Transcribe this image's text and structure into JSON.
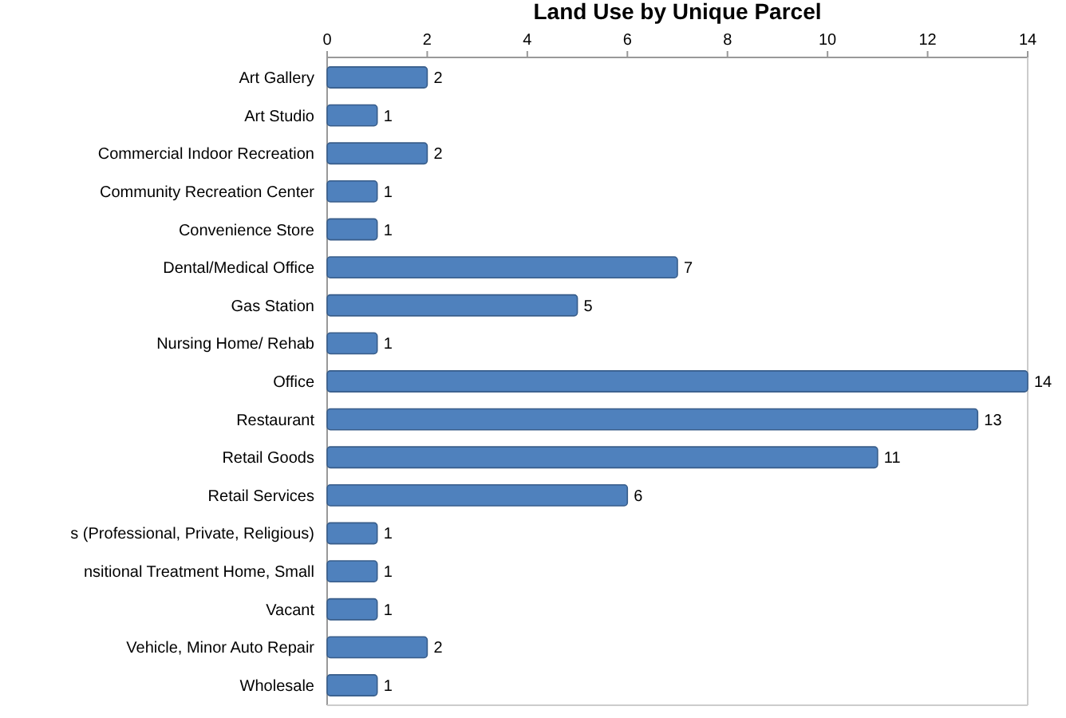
{
  "chart_data": {
    "type": "bar",
    "orientation": "horizontal",
    "title": "Land Use by Unique Parcel",
    "categories": [
      "Art Gallery",
      "Art Studio",
      "Commercial Indoor Recreation",
      "Community Recreation Center",
      "Convenience Store",
      "Dental/Medical Office",
      "Gas Station",
      "Nursing Home/ Rehab",
      "Office",
      "Restaurant",
      "Retail Goods",
      "Retail Services",
      "s (Professional, Private, Religious)",
      "nsitional Treatment Home, Small",
      "Vacant",
      "Vehicle, Minor Auto Repair",
      "Wholesale"
    ],
    "values": [
      2,
      1,
      2,
      1,
      1,
      7,
      5,
      1,
      14,
      13,
      11,
      6,
      1,
      1,
      1,
      2,
      1
    ],
    "color": "#4f81bd",
    "xlim": [
      0,
      14
    ],
    "xticks": [
      0,
      2,
      4,
      6,
      8,
      10,
      12,
      14
    ],
    "data_labels": true,
    "grid": false
  }
}
